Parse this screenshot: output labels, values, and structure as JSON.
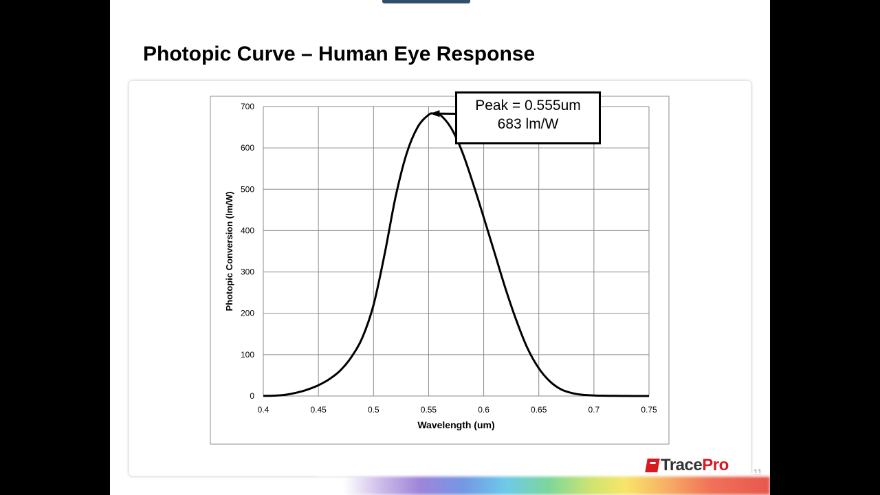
{
  "slide": {
    "title": "Photopic Curve – Human Eye Response",
    "page_number": "11",
    "brand": {
      "trace": "Trace",
      "pro": "Pro",
      "color": "#d71920"
    }
  },
  "callout": {
    "line1": "Peak = 0.555um",
    "line2": "683 lm/W"
  },
  "chart_data": {
    "type": "line",
    "title": "",
    "xlabel": "Wavelength (um)",
    "ylabel": "Photopic Conversion (lm/W)",
    "xlim": [
      0.4,
      0.75
    ],
    "ylim": [
      0,
      700
    ],
    "x_ticks": [
      "0.4",
      "0.45",
      "0.5",
      "0.55",
      "0.6",
      "0.65",
      "0.7",
      "0.75"
    ],
    "y_ticks": [
      "0",
      "100",
      "200",
      "300",
      "400",
      "500",
      "600",
      "700"
    ],
    "grid": true,
    "line_color": "#000000",
    "series": [
      {
        "x": [
          0.4,
          0.41,
          0.42,
          0.43,
          0.44,
          0.45,
          0.46,
          0.47,
          0.48,
          0.49,
          0.5,
          0.51,
          0.52,
          0.53,
          0.54,
          0.55,
          0.555,
          0.56,
          0.57,
          0.58,
          0.59,
          0.6,
          0.61,
          0.62,
          0.63,
          0.64,
          0.65,
          0.66,
          0.67,
          0.68,
          0.69,
          0.7,
          0.71,
          0.72,
          0.73,
          0.74,
          0.75
        ],
        "y": [
          0.3,
          0.8,
          2.9,
          7.9,
          15.4,
          26.0,
          40.9,
          62.0,
          94.5,
          142.0,
          220.0,
          342.0,
          481.0,
          586.0,
          650.0,
          680.0,
          683.0,
          681.0,
          650.0,
          594.0,
          517.0,
          432.0,
          345.0,
          258.0,
          180.0,
          114.0,
          67.0,
          35.5,
          16.3,
          7.1,
          2.8,
          1.4,
          0.7,
          0.3,
          0.1,
          0.08,
          0.05
        ]
      }
    ],
    "annotation": {
      "text": "Peak = 0.555um / 683 lm/W",
      "x": 0.555,
      "y": 683
    }
  }
}
